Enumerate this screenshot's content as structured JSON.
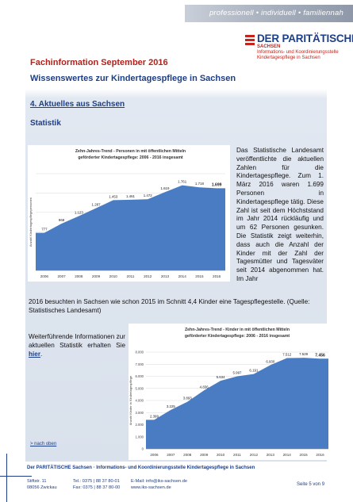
{
  "header": {
    "banner_text": "professionell • individuell • familiennah",
    "logo_name": "DER PARITÄTISCHE",
    "logo_sub1": "SACHSEN",
    "logo_sub2": "Informations- und Koordinierungsstelle",
    "logo_sub3": "Kindertagespflege in Sachsen"
  },
  "doc": {
    "title": "Fachinformation September 2016",
    "subtitle": "Wissenswertes zur Kindertagespflege in Sachsen",
    "section_heading": "4. Aktuelles aus Sachsen",
    "subsection_heading": "Statistik",
    "paragraph1_wrapped": "Das Statistische Landesamt veröffentlichte die aktuellen Zahlen für die Kindertagespflege. Zum 1. März 2016 waren 1.699 Personen in Kindertagespflege tätig. Diese Zahl ist seit dem Höchststand im Jahr 2014 rückläufig und um 62 Personen gesunken. Die Statistik zeigt weiterhin, dass auch die Anzahl der Kinder mit der Zahl der Tagesmütter und Tagesväter seit 2014 abgenommen hat. Im Jahr",
    "paragraph1_full": "2016 besuchten in Sachsen wie schon 2015 im Schnitt 4,4 Kinder eine Tagespflegestelle. (Quelle: Statistisches Landesamt)",
    "paragraph2_text": "Weiterführende Informationen zur aktuellen Statistik erhalten Sie ",
    "paragraph2_link": "hier",
    "paragraph2_end": ".",
    "back_link": "> nach oben"
  },
  "footer": {
    "org_line": "Der PARITÄTISCHE Sachsen · Informations- und Koordinierungsstelle Kindertagespflege in Sachsen",
    "address1": "Stiftstr. 11",
    "address2": "08056 Zwickau",
    "phone": "Tel.: 0375 | 88 37 80-01",
    "fax": "Fax: 0375 | 88 37 80-00",
    "email": "E-Mail: info@iks-sachsen.de",
    "web": "www.iks-sachsen.de",
    "page": "Seite 5 von 9"
  },
  "chart_data": [
    {
      "type": "area",
      "title": "Zehn-Jahres-Trend - Personen in mit öffentlichen Mitteln",
      "subtitle": "geförderter Kindertagespflege: 2006 - 2016 insgesamt",
      "ylabel": "Anzahl Kindertagespflegepersonen",
      "categories": [
        "2006",
        "2007",
        "2008",
        "2009",
        "2010",
        "2011",
        "2012",
        "2013",
        "2014",
        "2015",
        "2016"
      ],
      "values": [
        777,
        968,
        1123,
        1287,
        1453,
        1461,
        1472,
        1619,
        1761,
        1718,
        1699
      ],
      "value_labels": [
        "777",
        "968",
        "1.123",
        "1.287",
        "1.453",
        "1.461",
        "1.472",
        "1.619",
        "1.761",
        "1.718",
        "1.699"
      ],
      "ylim": [
        0,
        2000
      ],
      "color": "#4a7cc4",
      "grid": true
    },
    {
      "type": "area",
      "title": "Zehn-Jahres-Trend - Kinder in mit öffentlichen Mitteln",
      "subtitle": "geförderter Kindertagespflege: 2006 - 2016 insgesamt",
      "ylabel": "Anzahl Kinder in Kindertagespflege",
      "categories": [
        "2006",
        "2007",
        "2008",
        "2009",
        "2010",
        "2011",
        "2012",
        "2013",
        "2014",
        "2015",
        "2016"
      ],
      "values": [
        2399,
        3225,
        3893,
        4836,
        5634,
        5997,
        6191,
        6930,
        7512,
        7529,
        7456
      ],
      "value_labels": [
        "2.399",
        "3.225",
        "3.893",
        "4.836",
        "5.634",
        "5.997",
        "6.191",
        "6.930",
        "7.512",
        "7.529",
        "7.456"
      ],
      "yticks": [
        "0",
        "1.000",
        "2.000",
        "3.000",
        "4.000",
        "5.000",
        "6.000",
        "7.000",
        "8.000"
      ],
      "ylim": [
        0,
        8000
      ],
      "color": "#4a7cc4",
      "grid": true
    }
  ]
}
